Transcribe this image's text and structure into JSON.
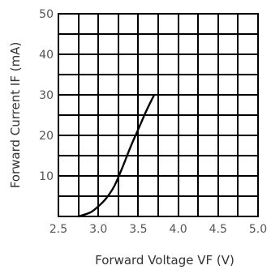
{
  "chart_data": {
    "type": "line",
    "title": "",
    "xlabel": "Forward Voltage VF (V)",
    "ylabel": "Forward Current IF (mA)",
    "xlim": [
      2.5,
      5.0
    ],
    "ylim": [
      0,
      50
    ],
    "x_ticks": [
      "2.5",
      "3.0",
      "3.5",
      "4.0",
      "4.5",
      "5.0"
    ],
    "y_ticks": [
      "10",
      "20",
      "30",
      "40",
      "50"
    ],
    "grid": true,
    "x_grid_step": 0.25,
    "y_grid_step": 5,
    "series": [
      {
        "x": [
          2.75,
          2.9,
          3.0,
          3.1,
          3.2,
          3.3,
          3.4,
          3.5,
          3.6,
          3.7
        ],
        "y": [
          0,
          1,
          2.5,
          4.5,
          7.5,
          12,
          17,
          21.5,
          26,
          30
        ],
        "color": "#000000"
      }
    ]
  }
}
